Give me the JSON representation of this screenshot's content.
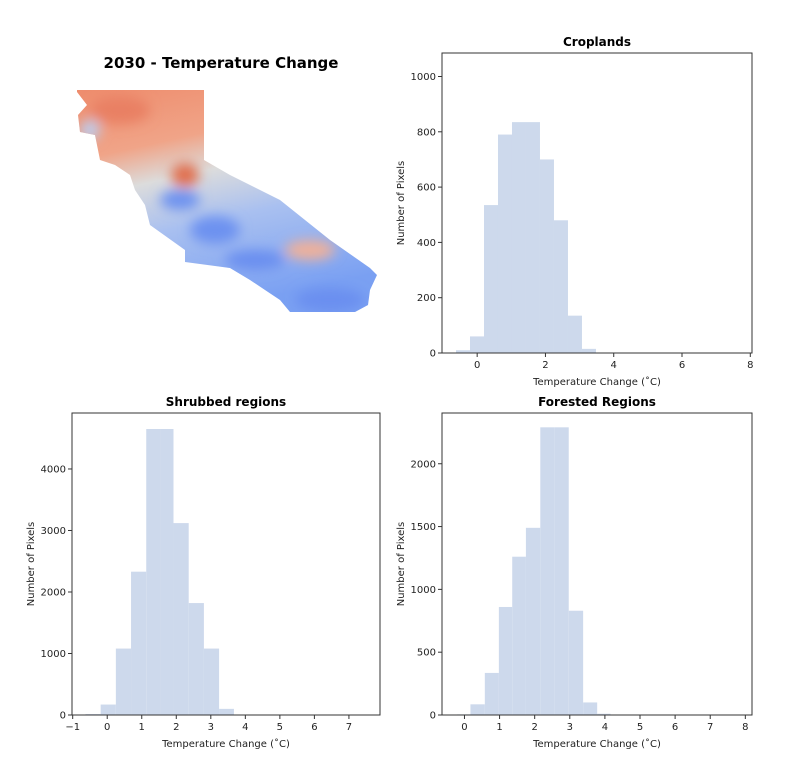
{
  "map": {
    "title": "2030 - Temperature Change",
    "colormap": "coolwarm",
    "colors": {
      "warm": "#ee8a6a",
      "neutral": "#dddcdc",
      "cool": "#6f95f2"
    }
  },
  "chart_data": [
    {
      "type": "bar",
      "subtype": "histogram",
      "title": "Croplands",
      "xlabel": "Temperature Change ($^\\circ$C)",
      "xlabel_display": "Temperature Change (˚C)",
      "ylabel": "Number of Pixels",
      "xlim": [
        -1.03,
        8.05
      ],
      "ylim": [
        0,
        1085
      ],
      "xticks": [
        0,
        2,
        4,
        6,
        8
      ],
      "yticks": [
        0,
        200,
        400,
        600,
        800,
        1000
      ],
      "bin_edges": [
        -0.62,
        -0.21,
        0.2,
        0.61,
        1.02,
        1.43,
        1.84,
        2.25,
        2.66,
        3.07,
        3.48
      ],
      "values": [
        10,
        60,
        535,
        790,
        835,
        835,
        700,
        480,
        135,
        15
      ],
      "color": "#cdd9ec",
      "grid": false
    },
    {
      "type": "bar",
      "subtype": "histogram",
      "title": "Shrubbed regions",
      "xlabel_display": "Temperature Change (˚C)",
      "ylabel": "Number of Pixels",
      "xlim": [
        -1.02,
        7.9
      ],
      "ylim": [
        0,
        4910
      ],
      "xticks": [
        -1,
        0,
        1,
        2,
        3,
        4,
        5,
        6,
        7
      ],
      "yticks": [
        0,
        1000,
        2000,
        3000,
        4000
      ],
      "bin_edges": [
        -0.63,
        -0.19,
        0.25,
        0.69,
        1.13,
        1.53,
        1.92,
        2.36,
        2.8,
        3.24,
        3.67
      ],
      "values": [
        15,
        170,
        1080,
        2330,
        4650,
        4650,
        3120,
        1820,
        1080,
        100
      ],
      "color": "#cdd9ec",
      "grid": false
    },
    {
      "type": "bar",
      "subtype": "histogram",
      "title": "Forested Regions",
      "xlabel_display": "Temperature Change (˚C)",
      "ylabel": "Number of Pixels",
      "xlim": [
        -0.64,
        8.19
      ],
      "ylim": [
        0,
        2404
      ],
      "xticks": [
        0,
        1,
        2,
        3,
        4,
        5,
        6,
        7,
        8
      ],
      "yticks": [
        0,
        500,
        1000,
        1500,
        2000
      ],
      "bin_edges": [
        -0.21,
        0.17,
        0.58,
        0.98,
        1.36,
        1.75,
        2.16,
        2.56,
        2.97,
        3.38,
        3.78,
        4.16
      ],
      "values": [
        5,
        85,
        335,
        860,
        1260,
        1490,
        2290,
        2290,
        830,
        100,
        10
      ],
      "color": "#cdd9ec",
      "grid": false
    }
  ]
}
